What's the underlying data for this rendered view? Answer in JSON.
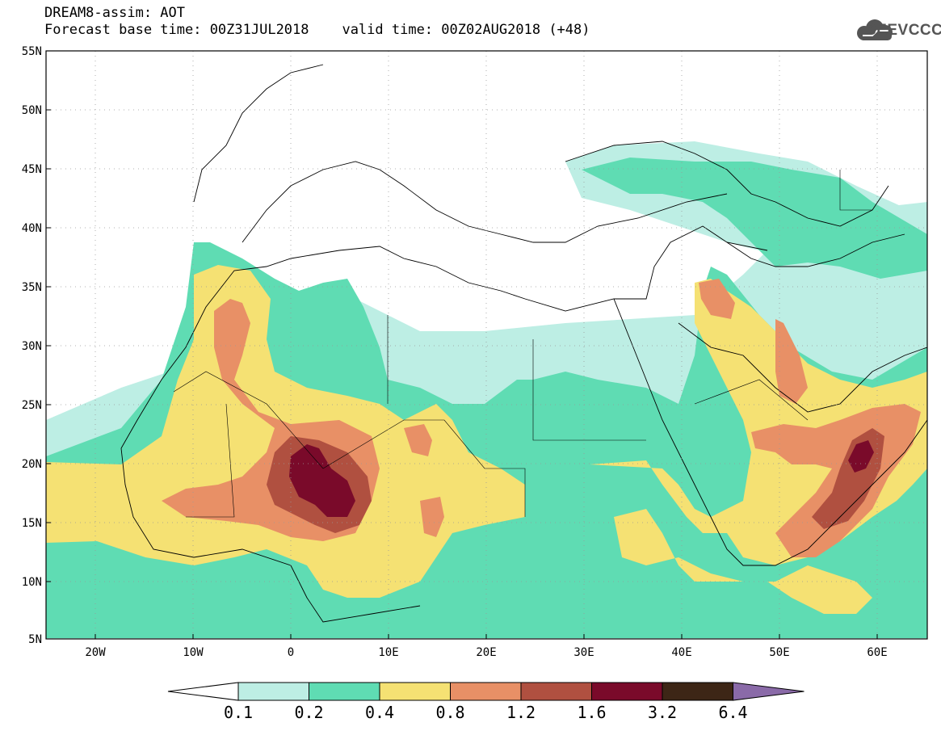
{
  "header": {
    "line1": "DREAM8-assim: AOT",
    "line2": "Forecast base time: 00Z31JUL2018    valid time: 00Z02AUG2018 (+48)"
  },
  "logo": {
    "text": "SEEVCCC",
    "icon": "cloud-icon",
    "color": "#555555"
  },
  "map": {
    "lat_range": [
      5,
      55
    ],
    "lon_range": [
      -25,
      65
    ],
    "lat_ticks": [
      "5N",
      "10N",
      "15N",
      "20N",
      "25N",
      "30N",
      "35N",
      "40N",
      "45N",
      "50N",
      "55N"
    ],
    "lon_ticks": [
      "20W",
      "10W",
      "0",
      "10E",
      "20E",
      "30E",
      "40E",
      "50E",
      "60E"
    ],
    "grid": "dotted"
  },
  "legend": {
    "colors": [
      "#ffffff",
      "#bdeee4",
      "#5fdcb3",
      "#f5e173",
      "#e89066",
      "#b05040",
      "#7a0a2a",
      "#3d2616",
      "#8a6aa8"
    ],
    "labels": [
      "0.1",
      "0.2",
      "0.4",
      "0.8",
      "1.2",
      "1.6",
      "3.2",
      "6.4"
    ]
  }
}
